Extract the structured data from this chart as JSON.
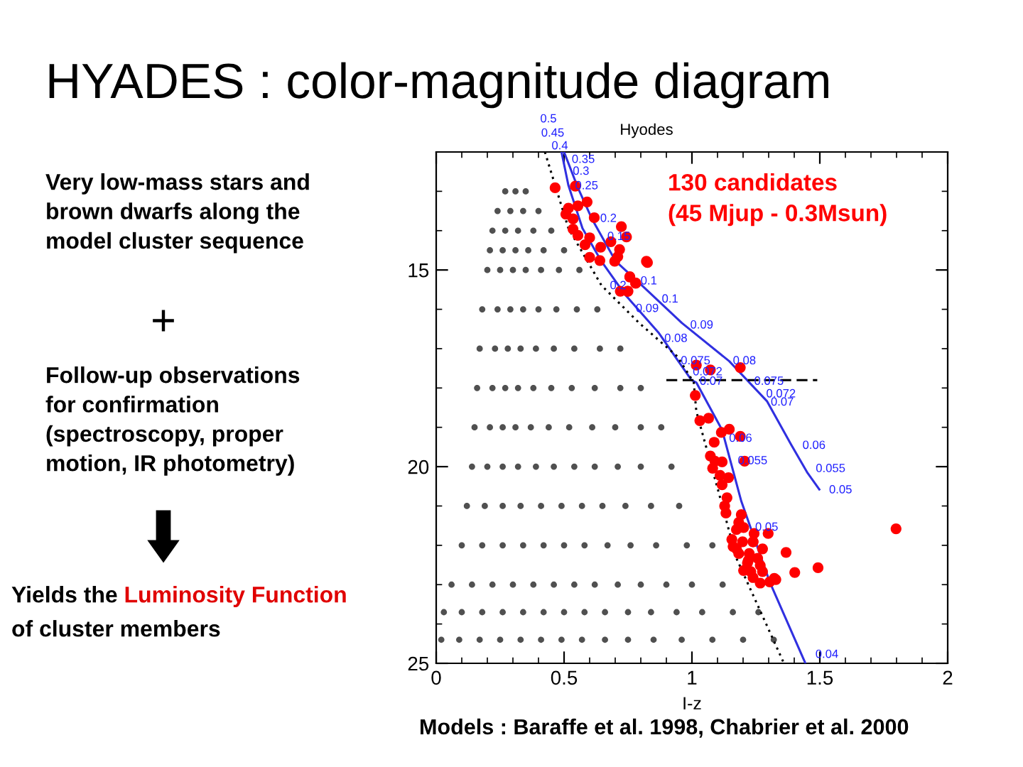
{
  "chart_data": {
    "type": "scatter",
    "title": "HYADES : color-magnitude diagram",
    "subtitle": "Hyodes",
    "xlabel": "I-z",
    "xlim": [
      0,
      2
    ],
    "ylim": [
      25,
      12
    ],
    "xticks": [
      0,
      {
        "value": 0.1,
        "label": null
      },
      {
        "value": 0.2,
        "label": null
      },
      {
        "value": 0.3,
        "label": null
      },
      {
        "value": 0.4,
        "label": null
      },
      0.5,
      {
        "value": 0.6,
        "label": null
      },
      {
        "value": 0.7,
        "label": null
      },
      {
        "value": 0.8,
        "label": null
      },
      {
        "value": 0.9,
        "label": null
      },
      1,
      {
        "value": 1.1,
        "label": null
      },
      {
        "value": 1.2,
        "label": null
      },
      {
        "value": 1.3,
        "label": null
      },
      {
        "value": 1.4,
        "label": null
      },
      1.5,
      {
        "value": 1.6,
        "label": null
      },
      {
        "value": 1.7,
        "label": null
      },
      {
        "value": 1.8,
        "label": null
      },
      {
        "value": 1.9,
        "label": null
      },
      2
    ],
    "yticks": [
      {
        "value": 12,
        "label": null
      },
      {
        "value": 13,
        "label": null
      },
      {
        "value": 14,
        "label": null
      },
      15,
      {
        "value": 16,
        "label": null
      },
      {
        "value": 17,
        "label": null
      },
      {
        "value": 18,
        "label": null
      },
      {
        "value": 19,
        "label": null
      },
      20,
      {
        "value": 21,
        "label": null
      },
      {
        "value": 22,
        "label": null
      },
      {
        "value": 23,
        "label": null
      },
      {
        "value": 24,
        "label": null
      },
      25
    ],
    "grid": false,
    "legend": false,
    "series": [
      {
        "marker": "circle",
        "color": "#505050",
        "x": [
          0.27,
          0.31,
          0.35,
          0.24,
          0.29,
          0.34,
          0.4,
          0.22,
          0.27,
          0.32,
          0.38,
          0.45,
          0.21,
          0.26,
          0.31,
          0.36,
          0.42,
          0.5,
          0.2,
          0.25,
          0.3,
          0.35,
          0.41,
          0.48,
          0.56,
          0.18,
          0.24,
          0.29,
          0.34,
          0.4,
          0.47,
          0.55,
          0.63,
          0.17,
          0.23,
          0.28,
          0.33,
          0.39,
          0.46,
          0.54,
          0.64,
          0.72,
          0.16,
          0.22,
          0.27,
          0.32,
          0.38,
          0.45,
          0.53,
          0.62,
          0.72,
          0.8,
          0.15,
          0.21,
          0.26,
          0.31,
          0.37,
          0.44,
          0.52,
          0.61,
          0.7,
          0.8,
          0.88,
          0.14,
          0.2,
          0.26,
          0.32,
          0.39,
          0.46,
          0.54,
          0.62,
          0.71,
          0.8,
          0.92,
          0.12,
          0.19,
          0.26,
          0.33,
          0.41,
          0.49,
          0.57,
          0.65,
          0.74,
          0.84,
          0.95,
          0.1,
          0.18,
          0.26,
          0.34,
          0.42,
          0.5,
          0.58,
          0.67,
          0.76,
          0.86,
          0.98,
          1.08,
          0.06,
          0.14,
          0.22,
          0.3,
          0.38,
          0.46,
          0.54,
          0.62,
          0.71,
          0.8,
          0.9,
          1.0,
          1.12,
          0.03,
          0.1,
          0.18,
          0.26,
          0.34,
          0.42,
          0.5,
          0.58,
          0.66,
          0.75,
          0.84,
          0.94,
          1.04,
          1.16,
          1.26,
          0.02,
          0.09,
          0.17,
          0.25,
          0.33,
          0.41,
          0.49,
          0.57,
          0.66,
          0.75,
          0.85,
          0.96,
          1.08,
          1.2,
          1.32
        ],
        "values": [
          13,
          13,
          13,
          13.5,
          13.5,
          13.5,
          13.5,
          14,
          14,
          14,
          14,
          14,
          14.5,
          14.5,
          14.5,
          14.5,
          14.5,
          14.5,
          15,
          15,
          15,
          15,
          15,
          15,
          15,
          16,
          16,
          16,
          16,
          16,
          16,
          16,
          16,
          17,
          17,
          17,
          17,
          17,
          17,
          17,
          17,
          17,
          18,
          18,
          18,
          18,
          18,
          18,
          18,
          18,
          18,
          18,
          19,
          19,
          19,
          19,
          19,
          19,
          19,
          19,
          19,
          19,
          19,
          20,
          20,
          20,
          20,
          20,
          20,
          20,
          20,
          20,
          20,
          20,
          21,
          21,
          21,
          21,
          21,
          21,
          21,
          21,
          21,
          21,
          21,
          22,
          22,
          22,
          22,
          22,
          22,
          22,
          22,
          22,
          22,
          22,
          22,
          23,
          23,
          23,
          23,
          23,
          23,
          23,
          23,
          23,
          23,
          23,
          23,
          23,
          23.7,
          23.7,
          23.7,
          23.7,
          23.7,
          23.7,
          23.7,
          23.7,
          23.7,
          23.7,
          23.7,
          23.7,
          23.7,
          23.7,
          23.7,
          24.4,
          24.4,
          24.4,
          24.4,
          24.4,
          24.4,
          24.4,
          24.4,
          24.4,
          24.4,
          24.4,
          24.4,
          24.4,
          24.4,
          24.4
        ]
      },
      {
        "type": "line",
        "color": "#3030e0",
        "x": [
          0.49,
          0.517,
          0.572,
          0.646,
          0.739,
          0.869,
          0.998,
          1.017,
          1.118,
          1.193,
          1.304,
          1.443
        ],
        "values": [
          12,
          12.85,
          13.94,
          14.78,
          15.63,
          16.59,
          17.8,
          17.86,
          19.07,
          20.88,
          22.93,
          24.99
        ]
      },
      {
        "type": "line",
        "color": "#3030e0",
        "x": [
          0.5,
          0.554,
          0.609,
          0.702,
          0.794,
          0.961,
          1.146,
          1.294,
          1.387,
          1.452,
          1.498
        ],
        "values": [
          12,
          12.91,
          13.7,
          14.78,
          15.33,
          16.35,
          17.32,
          18.34,
          19.43,
          20.16,
          20.58
        ]
      },
      {
        "type": "line",
        "color": "#000000",
        "line_style": "dotted",
        "x": [
          0.425,
          0.517,
          0.646,
          0.794,
          0.943,
          1.007,
          1.017,
          1.109,
          1.174,
          1.359
        ],
        "values": [
          12,
          13.94,
          15.39,
          16.35,
          17.2,
          17.86,
          18.59,
          20.76,
          22.33,
          24.99
        ]
      },
      {
        "type": "line",
        "color": "#000000",
        "line_style": "dashed",
        "x": [
          0.9,
          1.49
        ],
        "values": [
          17.8,
          17.8
        ]
      },
      {
        "marker": "circle",
        "color": "#ff0000",
        "x": [
          0.465,
          0.544,
          0.517,
          0.554,
          0.59,
          0.507,
          0.535,
          0.618,
          0.535,
          0.554,
          0.6,
          0.724,
          0.744,
          0.582,
          0.643,
          0.683,
          0.717,
          0.6,
          0.64,
          0.698,
          0.71,
          0.822,
          0.757,
          0.78,
          0.72,
          0.75,
          1.017,
          1.072,
          1.013,
          0.826,
          0.757,
          0.78,
          0.748,
          1.189,
          1.031,
          1.065,
          1.115,
          1.146,
          1.189,
          1.087,
          1.072,
          1.09,
          1.118,
          1.206,
          1.081,
          1.11,
          1.143,
          1.118,
          1.137,
          1.128,
          1.133,
          1.193,
          1.183,
          1.202,
          1.174,
          1.243,
          1.298,
          1.239,
          1.198,
          1.798,
          1.368,
          1.161,
          1.183,
          1.224,
          1.257,
          1.217,
          1.267,
          1.402,
          1.493,
          1.23,
          1.276,
          1.328,
          1.304,
          1.322,
          1.267,
          1.239,
          1.202,
          1.22,
          1.174,
          1.156,
          1.239,
          1.276
        ],
        "values": [
          12.91,
          12.87,
          13.43,
          13.37,
          13.27,
          13.58,
          13.7,
          13.67,
          13.96,
          14.12,
          14.18,
          13.9,
          14.16,
          14.36,
          14.42,
          14.28,
          14.48,
          14.68,
          14.76,
          14.78,
          14.66,
          14.78,
          15.17,
          15.34,
          15.54,
          15.54,
          17.42,
          17.54,
          18.19,
          14.81,
          15.18,
          15.33,
          15.54,
          17.48,
          18.83,
          18.77,
          19.13,
          19.05,
          19.23,
          19.38,
          19.73,
          19.86,
          19.88,
          19.86,
          20.04,
          20.22,
          20.28,
          20.46,
          20.79,
          21.0,
          21.18,
          21.22,
          21.42,
          21.55,
          21.6,
          21.7,
          21.7,
          21.91,
          21.91,
          21.58,
          22.18,
          22.03,
          22.21,
          22.21,
          22.33,
          22.45,
          22.51,
          22.69,
          22.57,
          22.67,
          22.67,
          22.87,
          22.93,
          22.84,
          22.96,
          22.82,
          22.64,
          22.39,
          22.09,
          21.85,
          21.91,
          22.09
        ]
      }
    ],
    "annotations": [
      "Very low-mass stars and\nbrown dwarfs along the\nmodel cluster sequence",
      "+",
      "Follow-up observations\nfor confirmation\n(spectroscopy, proper\nmotion, IR photometry)",
      "Yields the ",
      "Luminosity Function",
      "of cluster members",
      "130 candidates\n(45 Mjup - 0.3Msun)",
      "Models : Baraffe et al. 1998, Chabrier et al. 2000",
      "0.5",
      "0.45",
      "0.4",
      "0.04",
      {
        "text": "0.35",
        "x": 0.507,
        "y": 12.2
      },
      {
        "text": "0.3",
        "x": 0.511,
        "y": 12.5
      },
      {
        "text": "0.25",
        "x": 0.52,
        "y": 12.87
      },
      {
        "text": "0.2",
        "x": 0.618,
        "y": 13.7
      },
      {
        "text": "0.15",
        "x": 0.646,
        "y": 14.16
      },
      {
        "text": "0.1",
        "x": 0.776,
        "y": 15.29
      },
      {
        "text": "0.1",
        "x": 0.859,
        "y": 15.75
      },
      {
        "text": "0.09",
        "x": 0.97,
        "y": 16.41
      },
      {
        "text": "0.08",
        "x": 1.137,
        "y": 17.32
      },
      {
        "text": "0.075",
        "x": 1.22,
        "y": 17.84
      },
      {
        "text": "0.072",
        "x": 1.267,
        "y": 18.16
      },
      {
        "text": "0.07",
        "x": 1.285,
        "y": 18.37
      },
      {
        "text": "0.06",
        "x": 1.409,
        "y": 19.47
      },
      {
        "text": "0.055",
        "x": 1.461,
        "y": 20.06
      },
      {
        "text": "0.05",
        "x": 1.513,
        "y": 20.6
      },
      {
        "text": "0.2",
        "x": 0.656,
        "y": 15.41
      },
      {
        "text": "0.09",
        "x": 0.757,
        "y": 15.99
      },
      {
        "text": "0.08",
        "x": 0.869,
        "y": 16.75
      },
      {
        "text": "0.075",
        "x": 0.933,
        "y": 17.32
      },
      {
        "text": "0.072",
        "x": 0.98,
        "y": 17.6
      },
      {
        "text": "0.07",
        "x": 1.007,
        "y": 17.84
      },
      {
        "text": "0.06",
        "x": 1.122,
        "y": 19.29
      },
      {
        "text": "0.055",
        "x": 1.156,
        "y": 19.86
      },
      {
        "text": "0.05",
        "x": 1.224,
        "y": 21.55
      }
    ]
  }
}
